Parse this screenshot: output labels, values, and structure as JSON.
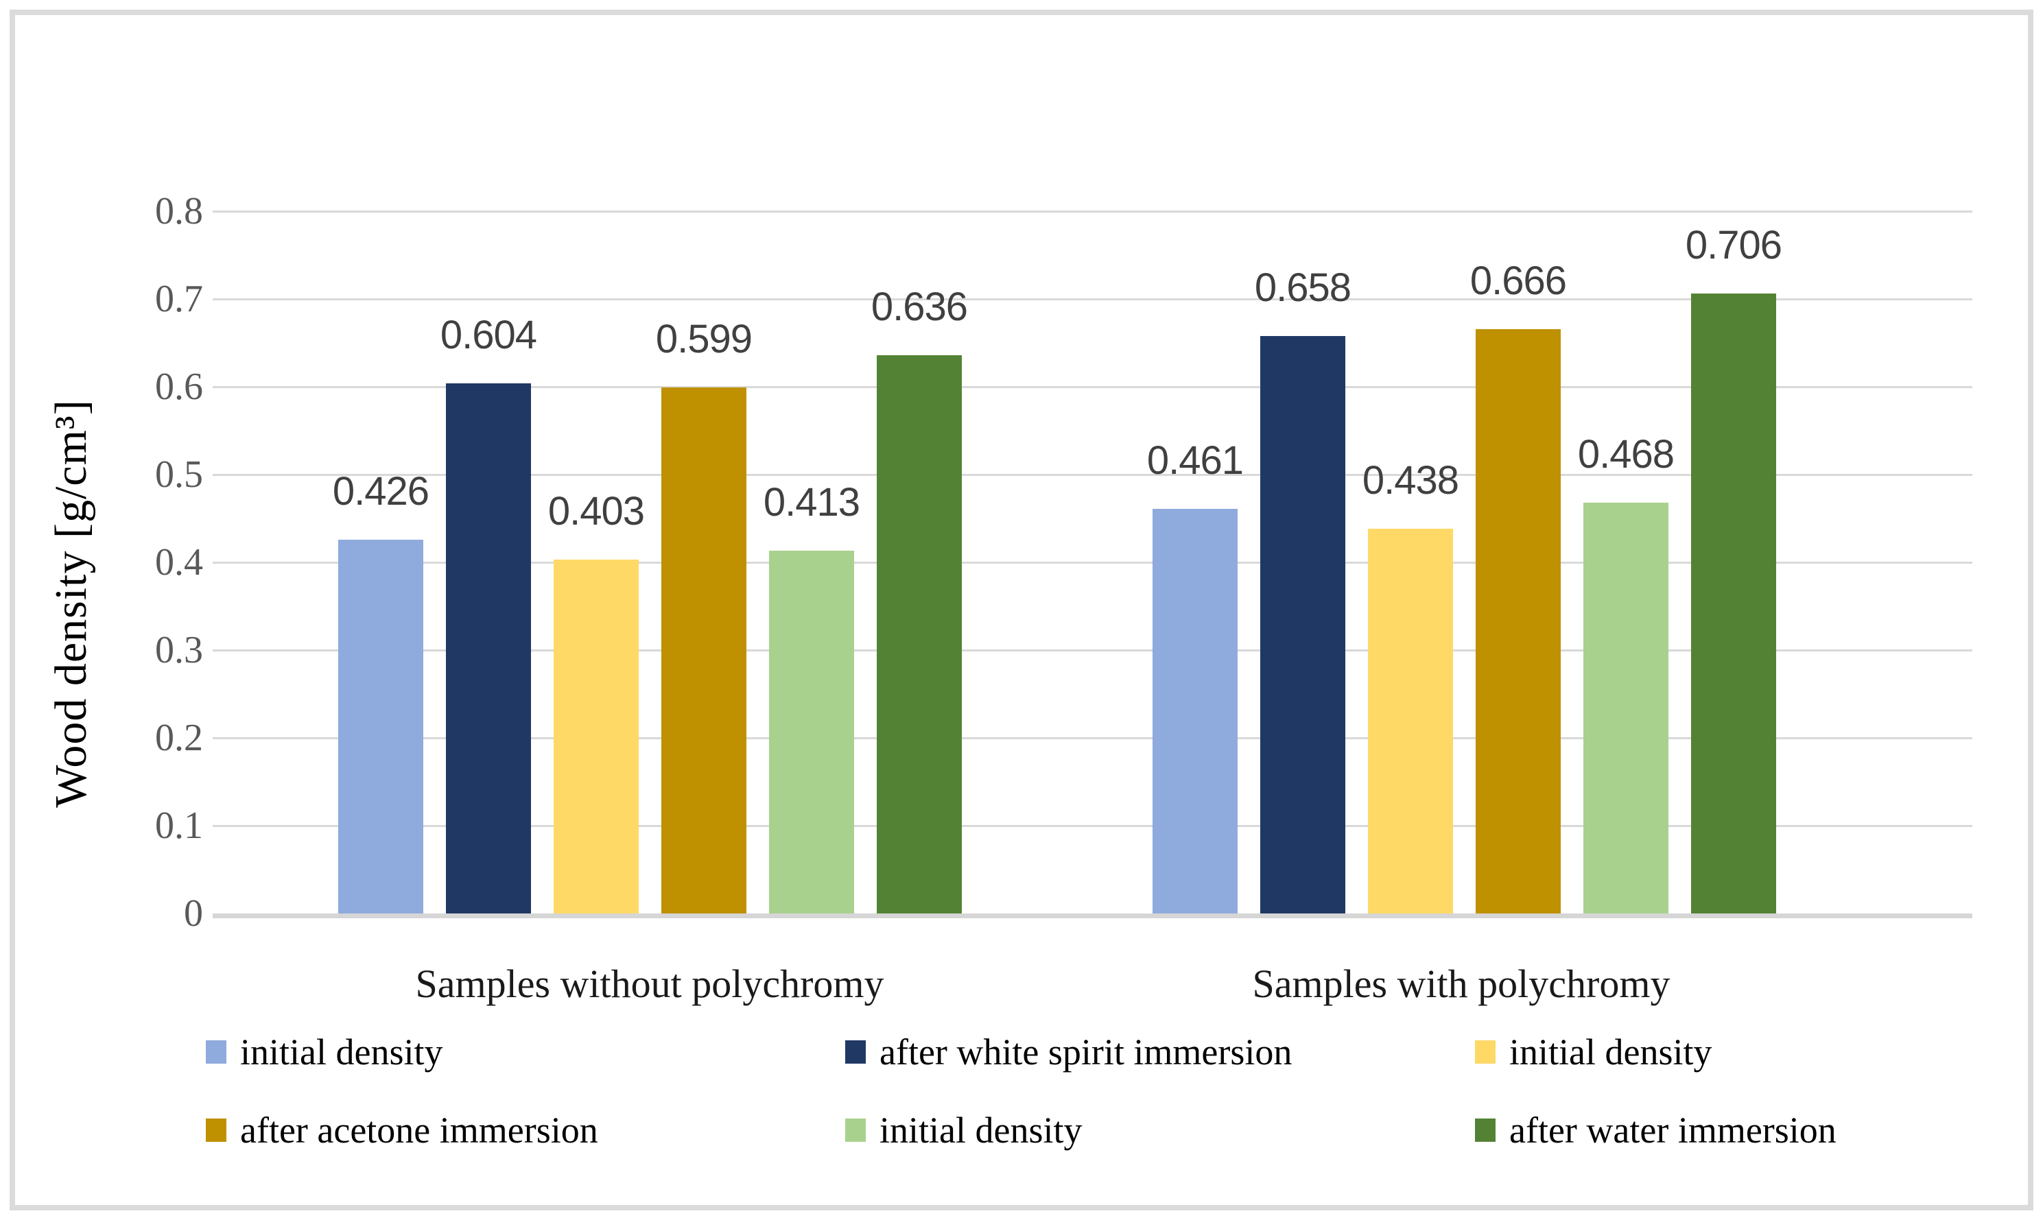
{
  "chart_data": {
    "type": "bar",
    "title": "",
    "xlabel": "",
    "ylabel": "Wood density [g/cm³]",
    "ylim": [
      0,
      0.8
    ],
    "yticks": [
      "0",
      "0.1",
      "0.2",
      "0.3",
      "0.4",
      "0.5",
      "0.6",
      "0.7",
      "0.8"
    ],
    "grid": true,
    "legend_position": "bottom",
    "categories": [
      "Samples without polychromy",
      "Samples with polychromy"
    ],
    "series": [
      {
        "name": "initial density",
        "color": "#8FAADC",
        "values": [
          0.426,
          0.461
        ]
      },
      {
        "name": "after white spirit immersion",
        "color": "#203864",
        "values": [
          0.604,
          0.658
        ]
      },
      {
        "name": "initial density",
        "color": "#FFD966",
        "values": [
          0.403,
          0.438
        ]
      },
      {
        "name": "after acetone immersion",
        "color": "#BF9000",
        "values": [
          0.599,
          0.666
        ]
      },
      {
        "name": "initial density",
        "color": "#A9D18E",
        "values": [
          0.413,
          0.468
        ]
      },
      {
        "name": "after water immersion",
        "color": "#548235",
        "values": [
          0.636,
          0.706
        ]
      }
    ],
    "data_label_decimals": 3,
    "colors": {
      "gridline": "#D9D9D9",
      "axis_line": "#D6D6D6",
      "tick_text": "#595959",
      "data_label_text": "#404040",
      "category_text": "#1A1A1A",
      "legend_text": "#000000",
      "frame_border": "#DBDBDB"
    }
  }
}
